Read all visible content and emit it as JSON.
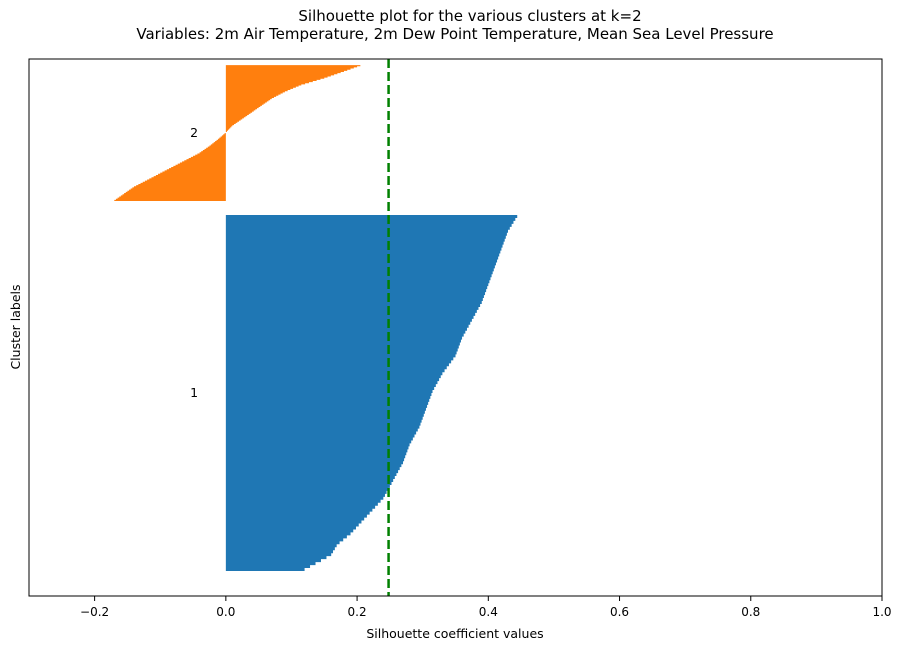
{
  "chart_data": {
    "type": "silhouette",
    "title": "Silhouette plot for the various clusters at k=2",
    "subtitle": "Variables: 2m Air Temperature, 2m Dew Point Temperature, Mean Sea Level Pressure",
    "xlabel": "Silhouette coefficient values",
    "ylabel": "Cluster labels",
    "xlim": [
      -0.3,
      1.0
    ],
    "x_ticks": [
      -0.2,
      0.0,
      0.2,
      0.4,
      0.6,
      0.8,
      1.0
    ],
    "x_tick_labels": [
      "−0.2",
      "0.0",
      "0.2",
      "0.4",
      "0.6",
      "0.8",
      "1.0"
    ],
    "y_ticks_shown": false,
    "reference_line": {
      "value": 0.248,
      "style": "dashed",
      "color": "#008000"
    },
    "clusters": [
      {
        "label": "1",
        "color": "#1f77b4",
        "size": 540,
        "profile_fraction": [
          0.0,
          0.02,
          0.05,
          0.1,
          0.15,
          0.2,
          0.25,
          0.3,
          0.35,
          0.4,
          0.45,
          0.5,
          0.55,
          0.6,
          0.65,
          0.7,
          0.75,
          0.8,
          0.85,
          0.9,
          0.93,
          0.96,
          0.98,
          0.99,
          1.0
        ],
        "profile_value": [
          0.447,
          0.44,
          0.43,
          0.42,
          0.41,
          0.4,
          0.39,
          0.375,
          0.36,
          0.35,
          0.33,
          0.315,
          0.305,
          0.295,
          0.28,
          0.27,
          0.255,
          0.24,
          0.215,
          0.19,
          0.17,
          0.16,
          0.14,
          0.13,
          0.12
        ]
      },
      {
        "label": "2",
        "color": "#ff7f0e",
        "size": 206,
        "profile_fraction": [
          0.0,
          0.05,
          0.1,
          0.15,
          0.2,
          0.25,
          0.3,
          0.35,
          0.4,
          0.45,
          0.5,
          0.55,
          0.6,
          0.65,
          0.7,
          0.75,
          0.8,
          0.85,
          0.9,
          0.95,
          1.0
        ],
        "profile_value": [
          0.21,
          0.18,
          0.15,
          0.115,
          0.09,
          0.07,
          0.055,
          0.04,
          0.025,
          0.01,
          0.0,
          -0.012,
          -0.025,
          -0.04,
          -0.06,
          -0.08,
          -0.1,
          -0.12,
          -0.14,
          -0.155,
          -0.17
        ]
      }
    ]
  }
}
